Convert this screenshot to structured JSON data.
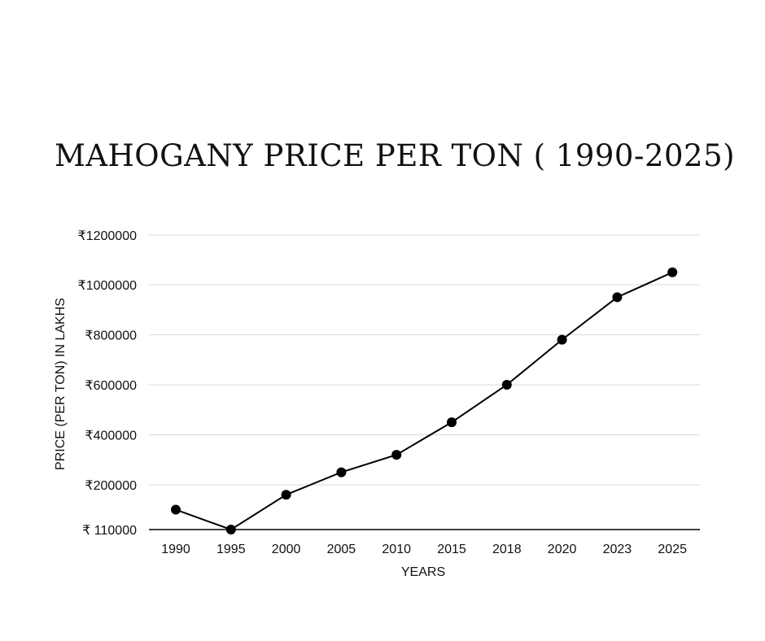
{
  "chart_data": {
    "type": "line",
    "title": "MAHOGANY PRICE PER TON ( 1990-2025)",
    "xlabel": "YEARS",
    "ylabel": "PRICE (PER TON) IN LAKHS",
    "categories": [
      "1990",
      "1995",
      "2000",
      "2005",
      "2010",
      "2015",
      "2018",
      "2020",
      "2023",
      "2025"
    ],
    "series": [
      {
        "values": [
          150000,
          110000,
          180000,
          250000,
          320000,
          450000,
          600000,
          780000,
          950000,
          1050000
        ]
      }
    ],
    "y_ticks": [
      {
        "value": 110000,
        "label": "₹ 110000"
      },
      {
        "value": 200000,
        "label": "₹200000"
      },
      {
        "value": 400000,
        "label": "₹400000"
      },
      {
        "value": 600000,
        "label": "₹600000"
      },
      {
        "value": 800000,
        "label": "₹800000"
      },
      {
        "value": 1000000,
        "label": "₹1000000"
      },
      {
        "value": 1200000,
        "label": "₹1200000"
      }
    ],
    "ylim": [
      110000,
      1200000
    ],
    "grid": true,
    "line_color": "#000000",
    "grid_color": "#d9d9d9"
  }
}
